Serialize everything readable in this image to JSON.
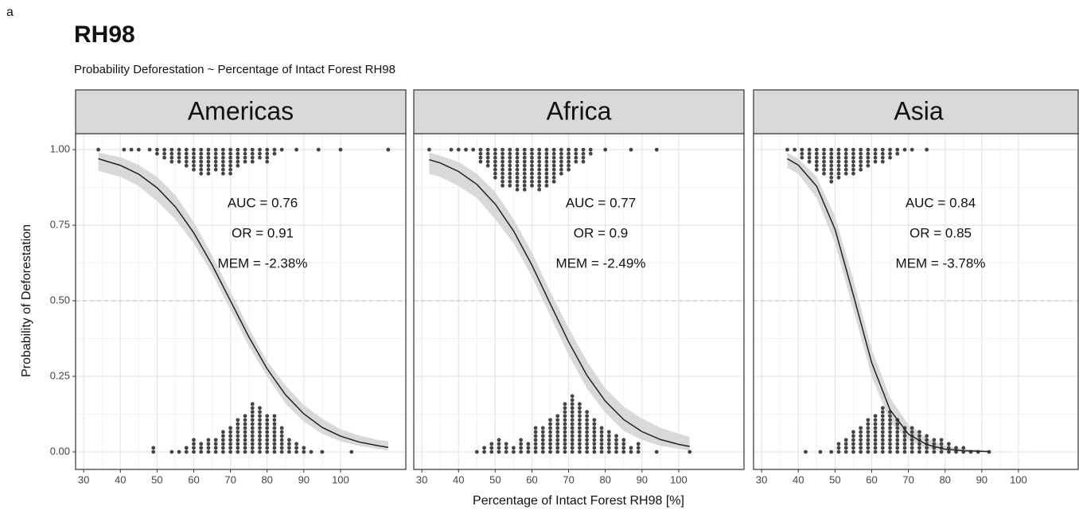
{
  "panel_tag": "a",
  "chart_data": {
    "type": "line",
    "title": "RH98",
    "subtitle": "Probability Deforestation ~  Percentage of Intact Forest RH98",
    "xlabel": "Percentage of Intact Forest RH98 [%]",
    "ylabel": "Probability of Deforestation",
    "xlim": [
      27.8,
      117.8
    ],
    "xticks": [
      30,
      40,
      50,
      60,
      70,
      80,
      90,
      100
    ],
    "ylim": [
      -0.058,
      1.053
    ],
    "yticks": [
      {
        "value": 0,
        "label": "0.00"
      },
      {
        "value": 0.25,
        "label": "0.25"
      },
      {
        "value": 0.5,
        "label": "0.50"
      },
      {
        "value": 0.75,
        "label": "0.75"
      },
      {
        "value": 1,
        "label": "1.00"
      }
    ],
    "hline": 0.5,
    "grid": true,
    "line_color": "#222222",
    "band_color": "#d9d9d9",
    "dot_color": "#444444",
    "panels": [
      {
        "name": "Americas",
        "annotations": [
          "AUC = 0.76",
          "OR = 0.91",
          "MEM = -2.38%"
        ],
        "curve": {
          "x": [
            34,
            40,
            45,
            50,
            55,
            60,
            65,
            70,
            75,
            80,
            85,
            90,
            95,
            100,
            105,
            110,
            113
          ],
          "y": [
            0.97,
            0.948,
            0.919,
            0.874,
            0.811,
            0.725,
            0.619,
            0.5,
            0.381,
            0.275,
            0.189,
            0.126,
            0.081,
            0.052,
            0.033,
            0.021,
            0.015
          ],
          "lower": [
            0.93,
            0.91,
            0.88,
            0.83,
            0.77,
            0.69,
            0.59,
            0.47,
            0.35,
            0.25,
            0.16,
            0.1,
            0.06,
            0.035,
            0.02,
            0.01,
            0.005
          ],
          "upper": [
            0.99,
            0.975,
            0.95,
            0.91,
            0.85,
            0.76,
            0.65,
            0.53,
            0.41,
            0.3,
            0.22,
            0.155,
            0.11,
            0.075,
            0.055,
            0.04,
            0.035
          ]
        },
        "bottom_stacks": {
          "x": [
            49,
            54,
            56,
            58,
            60,
            62,
            64,
            66,
            68,
            70,
            72,
            74,
            76,
            78,
            80,
            82,
            84,
            86,
            88,
            90,
            92,
            95,
            103
          ],
          "y": [
            0.02,
            0.01,
            0.01,
            0.02,
            0.04,
            0.03,
            0.05,
            0.04,
            0.07,
            0.09,
            0.11,
            0.13,
            0.16,
            0.15,
            0.13,
            0.12,
            0.08,
            0.05,
            0.03,
            0.02,
            0.01,
            0.01,
            0.01
          ]
        },
        "top_stacks": {
          "x": [
            34,
            41,
            43,
            45,
            48,
            50,
            52,
            54,
            56,
            58,
            60,
            62,
            64,
            66,
            68,
            70,
            72,
            74,
            76,
            78,
            80,
            82,
            84,
            88,
            94,
            100,
            113
          ],
          "y": [
            1,
            1,
            1,
            1,
            0.99,
            0.98,
            0.97,
            0.96,
            0.95,
            0.94,
            0.93,
            0.92,
            0.92,
            0.93,
            0.91,
            0.92,
            0.94,
            0.95,
            0.96,
            0.97,
            0.95,
            0.98,
            0.99,
            1,
            1,
            1,
            1
          ]
        }
      },
      {
        "name": "Africa",
        "annotations": [
          "AUC = 0.77",
          "OR = 0.9",
          "MEM = -2.49%"
        ],
        "curve": {
          "x": [
            32,
            35,
            40,
            45,
            50,
            55,
            60,
            65,
            70,
            75,
            80,
            85,
            90,
            95,
            100,
            103
          ],
          "y": [
            0.967,
            0.956,
            0.928,
            0.885,
            0.82,
            0.731,
            0.618,
            0.49,
            0.364,
            0.253,
            0.168,
            0.107,
            0.067,
            0.041,
            0.025,
            0.018
          ],
          "lower": [
            0.92,
            0.91,
            0.88,
            0.84,
            0.77,
            0.69,
            0.58,
            0.45,
            0.32,
            0.21,
            0.13,
            0.07,
            0.04,
            0.02,
            0.01,
            0.005
          ],
          "upper": [
            0.99,
            0.98,
            0.96,
            0.92,
            0.86,
            0.77,
            0.66,
            0.53,
            0.41,
            0.3,
            0.21,
            0.15,
            0.11,
            0.08,
            0.06,
            0.05
          ]
        },
        "bottom_stacks": {
          "x": [
            45,
            47,
            49,
            51,
            53,
            55,
            57,
            59,
            61,
            63,
            65,
            67,
            69,
            71,
            73,
            75,
            77,
            79,
            81,
            83,
            85,
            87,
            89,
            94,
            103
          ],
          "y": [
            0.01,
            0.02,
            0.03,
            0.04,
            0.03,
            0.02,
            0.05,
            0.03,
            0.08,
            0.09,
            0.11,
            0.13,
            0.17,
            0.19,
            0.16,
            0.14,
            0.11,
            0.09,
            0.07,
            0.06,
            0.04,
            0.02,
            0.03,
            0.01,
            0.01
          ]
        },
        "top_stacks": {
          "x": [
            32,
            38,
            40,
            42,
            44,
            46,
            48,
            50,
            52,
            54,
            56,
            58,
            60,
            62,
            64,
            66,
            68,
            70,
            72,
            74,
            76,
            80,
            87,
            94
          ],
          "y": [
            1,
            1,
            1,
            1,
            0.99,
            0.96,
            0.94,
            0.9,
            0.88,
            0.87,
            0.86,
            0.86,
            0.87,
            0.86,
            0.88,
            0.89,
            0.91,
            0.93,
            0.95,
            0.96,
            0.98,
            1,
            1,
            1
          ]
        }
      },
      {
        "name": "Asia",
        "annotations": [
          "AUC = 0.84",
          "OR = 0.85",
          "MEM = -3.78%"
        ],
        "curve": {
          "x": [
            37,
            40,
            45,
            50,
            55,
            60,
            65,
            70,
            75,
            80,
            85,
            92
          ],
          "y": [
            0.97,
            0.949,
            0.879,
            0.737,
            0.519,
            0.295,
            0.139,
            0.059,
            0.024,
            0.009,
            0.004,
            0.001
          ],
          "lower": [
            0.94,
            0.92,
            0.84,
            0.69,
            0.47,
            0.25,
            0.1,
            0.04,
            0.01,
            0.003,
            0.001,
            0
          ],
          "upper": [
            0.99,
            0.97,
            0.91,
            0.78,
            0.57,
            0.34,
            0.18,
            0.09,
            0.045,
            0.02,
            0.01,
            0.005
          ]
        },
        "bottom_stacks": {
          "x": [
            42,
            46,
            49,
            51,
            53,
            55,
            57,
            59,
            61,
            63,
            65,
            67,
            69,
            71,
            73,
            75,
            77,
            79,
            81,
            83,
            85,
            87,
            89,
            92
          ],
          "y": [
            0.01,
            0.01,
            0.01,
            0.03,
            0.05,
            0.07,
            0.09,
            0.11,
            0.13,
            0.15,
            0.14,
            0.11,
            0.09,
            0.08,
            0.07,
            0.06,
            0.05,
            0.04,
            0.03,
            0.02,
            0.02,
            0.01,
            0.01,
            0.01
          ]
        },
        "top_stacks": {
          "x": [
            37,
            39,
            41,
            43,
            45,
            47,
            49,
            51,
            53,
            55,
            57,
            59,
            61,
            63,
            65,
            67,
            69,
            71,
            75
          ],
          "y": [
            1,
            0.99,
            0.97,
            0.95,
            0.93,
            0.91,
            0.89,
            0.9,
            0.92,
            0.91,
            0.93,
            0.94,
            0.96,
            0.95,
            0.97,
            0.98,
            0.99,
            1,
            1
          ]
        }
      }
    ]
  }
}
